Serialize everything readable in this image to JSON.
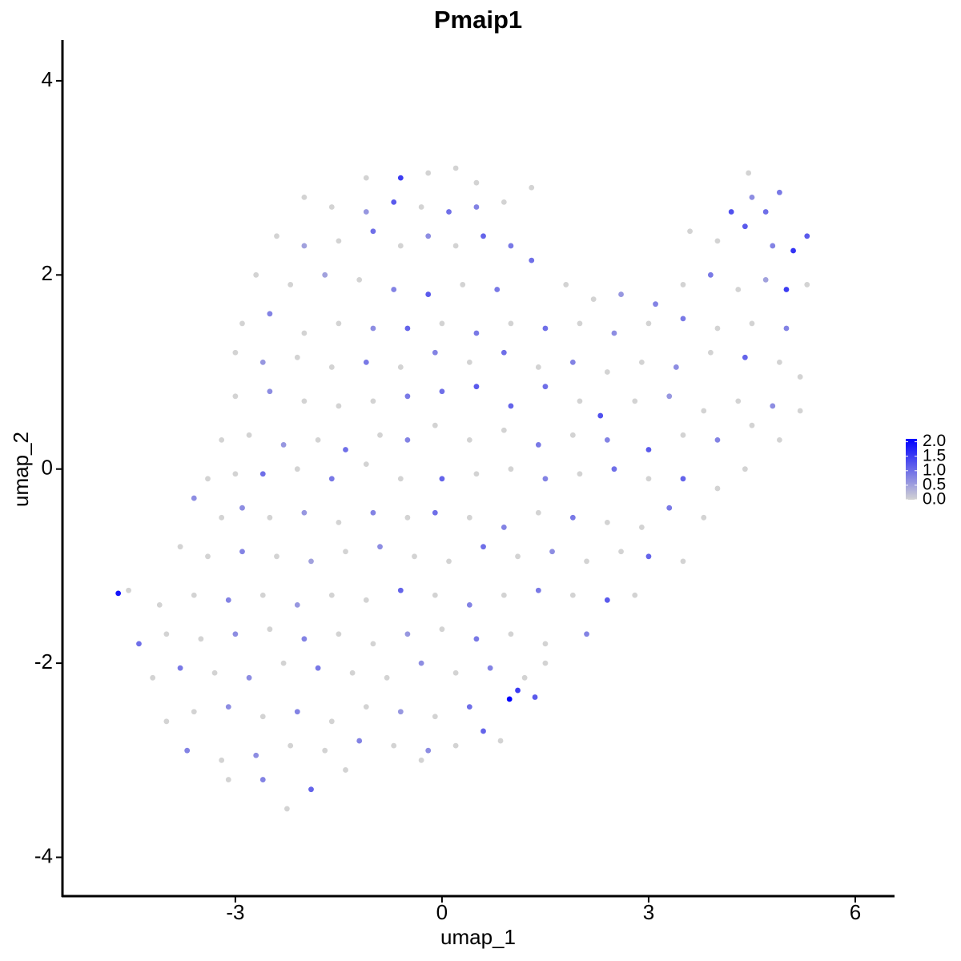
{
  "chart_data": {
    "type": "scatter",
    "title": "Pmaip1",
    "xlabel": "umap_1",
    "ylabel": "umap_2",
    "xlim": [
      -5.51,
      6.57
    ],
    "ylim": [
      -4.4,
      4.42
    ],
    "xticks": [
      -3,
      0,
      3,
      6
    ],
    "yticks": [
      -4,
      -2,
      0,
      2,
      4
    ],
    "colors": [
      "#d3d3d3",
      "#0000ff"
    ],
    "color_range": [
      0,
      2.1
    ],
    "color_ticks": [
      {
        "value": 0,
        "label": "0.0"
      },
      {
        "value": 0.5,
        "label": "0.5"
      },
      {
        "value": 1,
        "label": "1.0"
      },
      {
        "value": 1.5,
        "label": "1.5"
      },
      {
        "value": 2,
        "label": "2.0"
      }
    ],
    "x": [
      -1.1,
      -0.6,
      -0.2,
      0.2,
      0.5,
      4.45,
      -2.0,
      -1.6,
      -1.1,
      -0.7,
      -0.3,
      0.1,
      0.5,
      0.9,
      1.3,
      4.2,
      4.5,
      4.7,
      4.9,
      -2.4,
      -2.0,
      -1.5,
      -1.0,
      -0.6,
      -0.2,
      0.2,
      0.6,
      1.0,
      3.6,
      4.0,
      4.4,
      4.8,
      5.1,
      5.3,
      -2.7,
      -2.2,
      -1.7,
      -1.2,
      -0.7,
      -0.2,
      0.3,
      0.8,
      1.3,
      1.8,
      2.2,
      2.6,
      3.1,
      3.5,
      3.9,
      4.3,
      4.7,
      5.0,
      5.3,
      -2.9,
      -2.5,
      -2.0,
      -1.5,
      -1.0,
      -0.5,
      0,
      0.5,
      1.0,
      1.5,
      2.0,
      2.5,
      3.0,
      3.5,
      4.0,
      4.5,
      5.0,
      -3.0,
      -2.6,
      -2.1,
      -1.6,
      -1.1,
      -0.6,
      -0.1,
      0.4,
      0.9,
      1.4,
      1.9,
      2.4,
      2.9,
      3.4,
      3.9,
      4.4,
      4.9,
      5.2,
      -3.0,
      -2.5,
      -2.0,
      -1.5,
      -1.0,
      -0.5,
      0,
      0.5,
      1.0,
      1.5,
      2.0,
      2.3,
      2.8,
      3.3,
      3.8,
      4.3,
      4.8,
      5.2,
      -3.2,
      -2.8,
      -2.3,
      -1.8,
      -1.4,
      -0.9,
      -0.5,
      -0.1,
      0.4,
      0.9,
      1.4,
      1.9,
      2.4,
      3.0,
      3.5,
      4.0,
      4.5,
      4.9,
      -3.4,
      -3.0,
      -2.6,
      -2.1,
      -1.6,
      -1.1,
      -0.6,
      0,
      0.5,
      1.0,
      1.5,
      2.0,
      2.5,
      3.0,
      3.5,
      4.0,
      4.4,
      -3.6,
      -3.2,
      -2.9,
      -2.5,
      -2.0,
      -1.5,
      -1.0,
      -0.5,
      -0.1,
      0.4,
      0.9,
      1.4,
      1.9,
      2.4,
      2.9,
      3.3,
      3.8,
      -3.8,
      -3.4,
      -2.9,
      -2.4,
      -1.9,
      -1.4,
      -0.9,
      -0.4,
      0.1,
      0.6,
      1.1,
      1.6,
      2.1,
      2.6,
      3.0,
      3.5,
      -4.7,
      -4.55,
      -4.1,
      -3.6,
      -3.1,
      -2.6,
      -2.1,
      -1.6,
      -1.1,
      -0.6,
      -0.1,
      0.4,
      0.9,
      1.4,
      1.9,
      2.4,
      2.8,
      -4.4,
      -4.0,
      -3.5,
      -3.0,
      -2.5,
      -2.0,
      -1.5,
      -1.0,
      -0.5,
      0,
      0.5,
      1.0,
      1.5,
      2.1,
      -4.2,
      -3.8,
      -3.3,
      -2.8,
      -2.3,
      -1.8,
      -1.3,
      -0.8,
      -0.3,
      0.2,
      0.7,
      1.2,
      1.5,
      -4.0,
      -3.6,
      -3.1,
      -2.6,
      -2.1,
      -1.6,
      -1.1,
      -0.6,
      -0.1,
      0.4,
      0.98,
      1.1,
      1.35,
      -3.7,
      -3.2,
      -2.7,
      -2.2,
      -1.7,
      -1.2,
      -0.7,
      -0.2,
      0.2,
      0.6,
      0.85,
      -3.1,
      -2.6,
      -2.25,
      -1.9,
      -1.4,
      -0.3
    ],
    "y": [
      3.0,
      3.0,
      3.05,
      3.1,
      2.95,
      3.05,
      2.8,
      2.7,
      2.65,
      2.75,
      2.7,
      2.65,
      2.7,
      2.75,
      2.9,
      2.65,
      2.8,
      2.65,
      2.85,
      2.4,
      2.3,
      2.35,
      2.45,
      2.3,
      2.4,
      2.3,
      2.4,
      2.3,
      2.45,
      2.35,
      2.5,
      2.3,
      2.25,
      2.4,
      2.0,
      1.9,
      2.0,
      1.95,
      1.85,
      1.8,
      1.9,
      1.85,
      2.15,
      1.9,
      1.75,
      1.8,
      1.7,
      1.9,
      2.0,
      1.85,
      1.95,
      1.85,
      1.9,
      1.5,
      1.6,
      1.4,
      1.5,
      1.45,
      1.45,
      1.5,
      1.4,
      1.5,
      1.45,
      1.5,
      1.4,
      1.5,
      1.55,
      1.45,
      1.5,
      1.45,
      1.2,
      1.1,
      1.15,
      1.05,
      1.1,
      1.05,
      1.2,
      1.1,
      1.2,
      1.05,
      1.1,
      1.0,
      1.1,
      1.05,
      1.2,
      1.15,
      1.1,
      0.95,
      0.75,
      0.8,
      0.7,
      0.65,
      0.7,
      0.75,
      0.8,
      0.85,
      0.65,
      0.85,
      0.7,
      0.55,
      0.7,
      0.75,
      0.6,
      0.7,
      0.65,
      0.6,
      0.3,
      0.35,
      0.25,
      0.3,
      0.2,
      0.35,
      0.3,
      0.45,
      0.3,
      0.4,
      0.25,
      0.35,
      0.3,
      0.2,
      0.35,
      0.3,
      0.45,
      0.3,
      -0.1,
      -0.05,
      -0.05,
      0.0,
      -0.1,
      0.05,
      -0.1,
      -0.1,
      -0.05,
      0.0,
      -0.1,
      -0.05,
      0.0,
      -0.1,
      -0.1,
      -0.2,
      0.0,
      -0.3,
      -0.5,
      -0.4,
      -0.5,
      -0.45,
      -0.55,
      -0.45,
      -0.5,
      -0.45,
      -0.5,
      -0.6,
      -0.45,
      -0.5,
      -0.55,
      -0.6,
      -0.4,
      -0.5,
      -0.8,
      -0.9,
      -0.85,
      -0.9,
      -0.95,
      -0.85,
      -0.8,
      -0.9,
      -0.95,
      -0.8,
      -0.9,
      -0.85,
      -0.95,
      -0.85,
      -0.9,
      -0.95,
      -1.28,
      -1.25,
      -1.4,
      -1.3,
      -1.35,
      -1.3,
      -1.4,
      -1.3,
      -1.35,
      -1.25,
      -1.3,
      -1.4,
      -1.3,
      -1.25,
      -1.3,
      -1.35,
      -1.3,
      -1.8,
      -1.7,
      -1.75,
      -1.7,
      -1.65,
      -1.75,
      -1.7,
      -1.8,
      -1.7,
      -1.65,
      -1.75,
      -1.7,
      -1.8,
      -1.7,
      -2.15,
      -2.05,
      -2.1,
      -2.15,
      -2.0,
      -2.05,
      -2.1,
      -2.15,
      -2.0,
      -2.1,
      -2.05,
      -2.15,
      -2.0,
      -2.6,
      -2.5,
      -2.45,
      -2.55,
      -2.5,
      -2.6,
      -2.45,
      -2.5,
      -2.55,
      -2.45,
      -2.37,
      -2.28,
      -2.35,
      -2.9,
      -3.0,
      -2.95,
      -2.85,
      -2.9,
      -2.8,
      -2.85,
      -2.9,
      -2.85,
      -2.7,
      -2.8,
      -3.2,
      -3.2,
      -3.5,
      -3.3,
      -3.1,
      -3.0
    ],
    "values": [
      0,
      1.5,
      0,
      0,
      0,
      0,
      0,
      0,
      0.6,
      1.2,
      0,
      1.0,
      0.8,
      0,
      0,
      1.3,
      0.7,
      1.0,
      0.9,
      0,
      0.5,
      0,
      1.0,
      0,
      0.7,
      0,
      1.1,
      0.9,
      0,
      0,
      1.2,
      0.8,
      1.6,
      1.2,
      0,
      0,
      0.5,
      0,
      0.8,
      1.2,
      0,
      0.9,
      1.0,
      0,
      0,
      0.6,
      0.8,
      0,
      0.9,
      0,
      0.5,
      1.5,
      0,
      0,
      0.8,
      0,
      0,
      0.7,
      1.1,
      0,
      0.9,
      0,
      1.0,
      0,
      0.7,
      0,
      0.9,
      0,
      0,
      0.8,
      0,
      0.6,
      0,
      0,
      0.9,
      0,
      0.8,
      0,
      1.0,
      0,
      0.8,
      0,
      0,
      0.7,
      0,
      1.1,
      0,
      0,
      0,
      0.7,
      0,
      0,
      0,
      0.9,
      1.0,
      1.2,
      1.1,
      1.0,
      0,
      1.3,
      0,
      0.6,
      0,
      0,
      0.7,
      0,
      0,
      0,
      0.6,
      0,
      1.0,
      0,
      0.8,
      0,
      0,
      0,
      0.9,
      0,
      0.8,
      1.2,
      0,
      0.8,
      0,
      0,
      0,
      0,
      1.0,
      0,
      0.9,
      0,
      0,
      1.1,
      0,
      0,
      0.8,
      0,
      1.0,
      0,
      1.1,
      0,
      0,
      0.7,
      0,
      0.7,
      0,
      0.6,
      0,
      0.8,
      0,
      1.0,
      0,
      0.8,
      0,
      0.9,
      0,
      0,
      0.9,
      0,
      0,
      0,
      0.8,
      0,
      0.5,
      0,
      0.7,
      0,
      0,
      1.0,
      0,
      0.7,
      0,
      0,
      1.1,
      0,
      1.9,
      0,
      0,
      0,
      0.8,
      0,
      0.6,
      0,
      0,
      1.1,
      0,
      0.8,
      0,
      0.9,
      0,
      1.2,
      0,
      1.0,
      0,
      0,
      0.7,
      0,
      0.8,
      0,
      0,
      0.6,
      0,
      0.9,
      0,
      0,
      0.8,
      0,
      0.9,
      0,
      0.7,
      0,
      0.9,
      0,
      0,
      0.7,
      0,
      0.8,
      0,
      0,
      0,
      0,
      0.7,
      0,
      0.8,
      0,
      0,
      0.6,
      0,
      1.0,
      2.1,
      1.5,
      1.2,
      0.8,
      0,
      0.7,
      0,
      0,
      0.8,
      0,
      0.7,
      0,
      1.1,
      0,
      0,
      0.8,
      0,
      1.1,
      0,
      0
    ]
  }
}
